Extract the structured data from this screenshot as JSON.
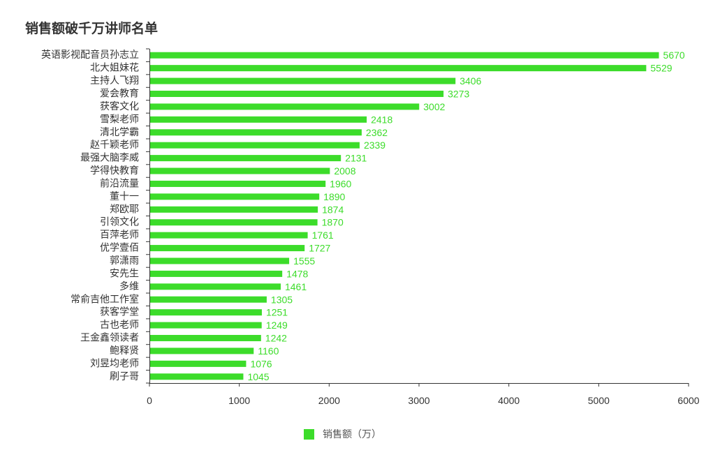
{
  "chart_data": {
    "type": "bar",
    "orientation": "horizontal",
    "title": "销售额破千万讲师名单",
    "categories": [
      "英语影视配音员孙志立",
      "北大姐妹花",
      "主持人飞翔",
      "爱会教育",
      "获客文化",
      "雪梨老师",
      "清北学霸",
      "赵千颖老师",
      "最强大脑李威",
      "学得快教育",
      "前沿流量",
      "董十一",
      "郑欧耶",
      "引领文化",
      "百萍老师",
      "优学壹佰",
      "郭潇雨",
      "安先生",
      "多维",
      "常俞吉他工作室",
      "获客学堂",
      "古也老师",
      "王金鑫领读者",
      "鲍释贤",
      "刘昱均老师",
      "刷子哥"
    ],
    "series": [
      {
        "name": "销售额（万）",
        "values": [
          5670,
          5529,
          3406,
          3273,
          3002,
          2418,
          2362,
          2339,
          2131,
          2008,
          1960,
          1890,
          1874,
          1870,
          1761,
          1727,
          1555,
          1478,
          1461,
          1305,
          1251,
          1249,
          1242,
          1160,
          1076,
          1045
        ]
      }
    ],
    "xlim": [
      0,
      6000
    ],
    "xticks": [
      "0",
      "1000",
      "2000",
      "3000",
      "4000",
      "5000",
      "6000"
    ],
    "grid": false,
    "legend_position": "bottom",
    "data_labels": true,
    "colors": {
      "bar": "#3cdc2a",
      "label": "#3cdc2a",
      "axis": "#333333"
    }
  }
}
